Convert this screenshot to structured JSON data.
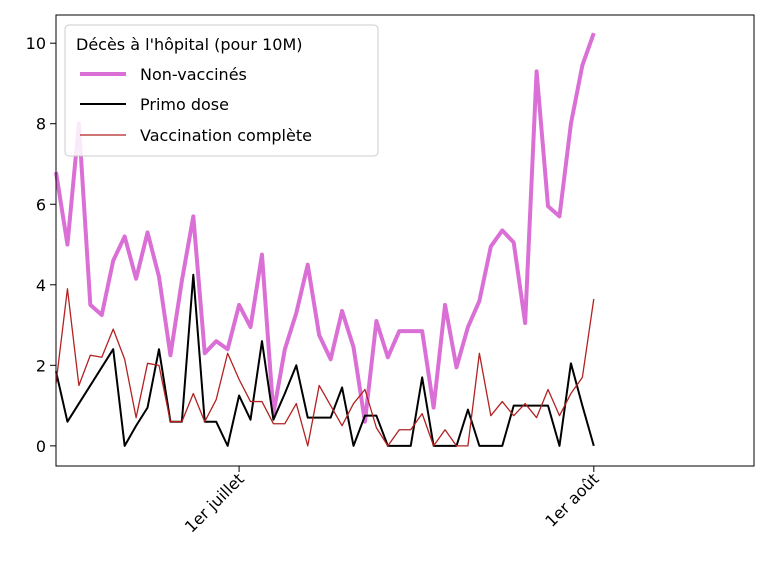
{
  "chart_data": {
    "type": "line",
    "title": "",
    "xlabel": "",
    "ylabel": "",
    "x_start": "2021-06-15",
    "x_range": [
      "2021-06-15",
      "2021-08-15"
    ],
    "ylim": [
      -0.5,
      10.7
    ],
    "yticks": [
      0,
      2,
      4,
      6,
      8,
      10
    ],
    "xticks": [
      {
        "label": "1er juillet",
        "date": "2021-07-01"
      },
      {
        "label": "1er août",
        "date": "2021-08-01"
      }
    ],
    "grid": false,
    "legend": {
      "title": "Décès à l'hôpital (pour 10M)",
      "placement": "top-left"
    },
    "series": [
      {
        "name": "Non-vaccinés",
        "color": "#DA70D6",
        "values": [
          6.8,
          5.0,
          8.0,
          3.5,
          3.25,
          4.6,
          5.2,
          4.15,
          5.3,
          4.2,
          2.25,
          4.1,
          5.7,
          2.3,
          2.6,
          2.4,
          3.5,
          2.95,
          4.75,
          0.8,
          2.4,
          3.3,
          4.5,
          2.75,
          2.15,
          3.35,
          2.45,
          0.6,
          3.1,
          2.2,
          2.85,
          2.85,
          2.85,
          0.95,
          3.5,
          1.95,
          2.95,
          3.6,
          4.95,
          5.35,
          5.05,
          3.05,
          9.3,
          5.95,
          5.7,
          8.0,
          9.45,
          10.25
        ]
      },
      {
        "name": "Primo dose",
        "color": "#000000",
        "values": [
          1.85,
          0.6,
          1.05,
          1.5,
          1.95,
          2.4,
          0.0,
          0.5,
          0.95,
          2.4,
          0.6,
          0.6,
          4.25,
          0.6,
          0.6,
          0.0,
          1.25,
          0.65,
          2.6,
          0.65,
          1.3,
          2.0,
          0.7,
          0.7,
          0.7,
          1.45,
          0.0,
          0.75,
          0.75,
          0.0,
          0.0,
          0.0,
          1.7,
          0.0,
          0.0,
          0.0,
          0.9,
          0.0,
          0.0,
          0.0,
          1.0,
          1.0,
          1.0,
          1.0,
          0.0,
          2.05,
          1.0,
          0.0
        ]
      },
      {
        "name": "Vaccination complète",
        "color": "#B22222",
        "values": [
          1.55,
          3.9,
          1.5,
          2.25,
          2.2,
          2.9,
          2.15,
          0.7,
          2.05,
          2.0,
          0.6,
          0.6,
          1.3,
          0.6,
          1.15,
          2.3,
          1.65,
          1.1,
          1.1,
          0.55,
          0.55,
          1.05,
          0.0,
          1.5,
          1.0,
          0.5,
          1.05,
          1.4,
          0.45,
          0.0,
          0.4,
          0.4,
          0.8,
          0.0,
          0.4,
          0.0,
          0.0,
          2.3,
          0.75,
          1.1,
          0.75,
          1.05,
          0.7,
          1.4,
          0.75,
          1.3,
          1.7,
          3.65
        ]
      }
    ]
  }
}
